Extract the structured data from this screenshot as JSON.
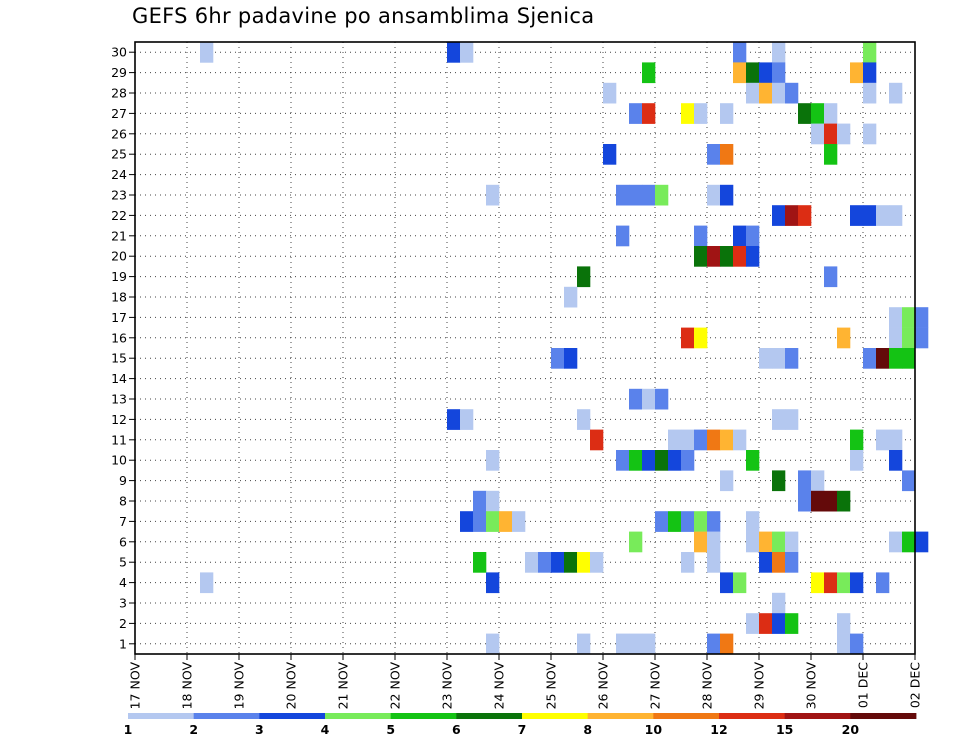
{
  "chart_data": {
    "type": "heatmap",
    "title": "GEFS 6hr padavine po ansamblima Sjenica",
    "xlabel": "",
    "ylabel": "",
    "x_tick_labels": [
      "17 NOV",
      "18 NOV",
      "19 NOV",
      "20 NOV",
      "21 NOV",
      "22 NOV",
      "23 NOV",
      "24 NOV",
      "25 NOV",
      "26 NOV",
      "27 NOV",
      "28 NOV",
      "29 NOV",
      "30 NOV",
      "01 DEC",
      "02 DEC"
    ],
    "y_tick_labels": [
      "1",
      "2",
      "3",
      "4",
      "5",
      "6",
      "7",
      "8",
      "9",
      "10",
      "11",
      "12",
      "13",
      "14",
      "15",
      "16",
      "17",
      "18",
      "19",
      "20",
      "21",
      "22",
      "23",
      "24",
      "25",
      "26",
      "27",
      "28",
      "29",
      "30"
    ],
    "time_steps_per_day": 4,
    "members": 30,
    "grid": true,
    "legend_position": "bottom",
    "colorbar": {
      "boundaries": [
        "1",
        "2",
        "3",
        "4",
        "5",
        "6",
        "7",
        "8",
        "10",
        "12",
        "15",
        "20"
      ],
      "colors": [
        "#b4c8f0",
        "#5a82eb",
        "#1446dc",
        "#78eb5a",
        "#14c314",
        "#0a730a",
        "#ffff00",
        "#ffb432",
        "#f07814",
        "#dc2d14",
        "#a01414",
        "#640a0a"
      ]
    },
    "cells": [
      [
        30,
        5,
        0
      ],
      [
        30,
        24,
        2
      ],
      [
        30,
        25,
        0
      ],
      [
        30,
        46,
        1
      ],
      [
        30,
        49,
        0
      ],
      [
        30,
        56,
        3
      ],
      [
        29,
        39,
        4
      ],
      [
        29,
        46,
        7
      ],
      [
        29,
        47,
        5
      ],
      [
        29,
        48,
        2
      ],
      [
        29,
        49,
        1
      ],
      [
        29,
        55,
        7
      ],
      [
        29,
        56,
        2
      ],
      [
        28,
        36,
        0
      ],
      [
        28,
        47,
        0
      ],
      [
        28,
        48,
        7
      ],
      [
        28,
        49,
        0
      ],
      [
        28,
        50,
        1
      ],
      [
        28,
        56,
        0
      ],
      [
        28,
        58,
        0
      ],
      [
        27,
        38,
        1
      ],
      [
        27,
        39,
        9
      ],
      [
        27,
        42,
        6
      ],
      [
        27,
        43,
        0
      ],
      [
        27,
        45,
        0
      ],
      [
        27,
        51,
        5
      ],
      [
        27,
        52,
        4
      ],
      [
        27,
        53,
        0
      ],
      [
        26,
        52,
        0
      ],
      [
        26,
        53,
        9
      ],
      [
        26,
        54,
        0
      ],
      [
        26,
        56,
        0
      ],
      [
        25,
        36,
        2
      ],
      [
        25,
        44,
        1
      ],
      [
        25,
        45,
        8
      ],
      [
        25,
        53,
        4
      ],
      [
        23,
        37,
        1
      ],
      [
        23,
        38,
        1
      ],
      [
        23,
        39,
        1
      ],
      [
        23,
        40,
        3
      ],
      [
        23,
        44,
        0
      ],
      [
        23,
        45,
        2
      ],
      [
        23,
        27,
        0
      ],
      [
        22,
        49,
        2
      ],
      [
        22,
        50,
        10
      ],
      [
        22,
        51,
        9
      ],
      [
        22,
        55,
        2
      ],
      [
        22,
        56,
        2
      ],
      [
        22,
        57,
        0
      ],
      [
        22,
        58,
        0
      ],
      [
        21,
        37,
        1
      ],
      [
        21,
        43,
        1
      ],
      [
        21,
        46,
        2
      ],
      [
        21,
        47,
        1
      ],
      [
        20,
        43,
        5
      ],
      [
        20,
        44,
        10
      ],
      [
        20,
        45,
        5
      ],
      [
        20,
        46,
        9
      ],
      [
        20,
        47,
        2
      ],
      [
        19,
        34,
        5
      ],
      [
        19,
        53,
        1
      ],
      [
        18,
        33,
        0
      ],
      [
        17,
        58,
        0
      ],
      [
        17,
        59,
        3
      ],
      [
        17,
        60,
        1
      ],
      [
        16,
        42,
        9
      ],
      [
        16,
        43,
        6
      ],
      [
        16,
        54,
        7
      ],
      [
        16,
        58,
        0
      ],
      [
        16,
        59,
        3
      ],
      [
        16,
        60,
        1
      ],
      [
        15,
        32,
        1
      ],
      [
        15,
        33,
        2
      ],
      [
        15,
        48,
        0
      ],
      [
        15,
        49,
        0
      ],
      [
        15,
        50,
        1
      ],
      [
        15,
        56,
        1
      ],
      [
        15,
        57,
        11
      ],
      [
        15,
        58,
        4
      ],
      [
        15,
        59,
        4
      ],
      [
        13,
        38,
        1
      ],
      [
        13,
        39,
        0
      ],
      [
        13,
        40,
        1
      ],
      [
        12,
        49,
        0
      ],
      [
        12,
        50,
        0
      ],
      [
        12,
        24,
        2
      ],
      [
        12,
        25,
        0
      ],
      [
        12,
        34,
        0
      ],
      [
        11,
        35,
        9
      ],
      [
        11,
        41,
        0
      ],
      [
        11,
        42,
        0
      ],
      [
        11,
        43,
        1
      ],
      [
        11,
        44,
        8
      ],
      [
        11,
        45,
        7
      ],
      [
        11,
        46,
        0
      ],
      [
        11,
        55,
        4
      ],
      [
        11,
        57,
        0
      ],
      [
        11,
        58,
        0
      ],
      [
        10,
        27,
        0
      ],
      [
        10,
        37,
        1
      ],
      [
        10,
        38,
        4
      ],
      [
        10,
        39,
        2
      ],
      [
        10,
        40,
        5
      ],
      [
        10,
        41,
        2
      ],
      [
        10,
        42,
        1
      ],
      [
        10,
        47,
        4
      ],
      [
        10,
        55,
        0
      ],
      [
        10,
        58,
        2
      ],
      [
        9,
        45,
        0
      ],
      [
        9,
        49,
        5
      ],
      [
        9,
        51,
        1
      ],
      [
        9,
        52,
        0
      ],
      [
        9,
        59,
        1
      ],
      [
        8,
        26,
        1
      ],
      [
        8,
        27,
        0
      ],
      [
        8,
        51,
        1
      ],
      [
        8,
        52,
        11
      ],
      [
        8,
        53,
        11
      ],
      [
        8,
        54,
        5
      ],
      [
        7,
        25,
        2
      ],
      [
        7,
        26,
        1
      ],
      [
        7,
        27,
        3
      ],
      [
        7,
        28,
        7
      ],
      [
        7,
        29,
        0
      ],
      [
        7,
        40,
        1
      ],
      [
        7,
        41,
        4
      ],
      [
        7,
        42,
        1
      ],
      [
        7,
        43,
        3
      ],
      [
        7,
        44,
        1
      ],
      [
        7,
        47,
        0
      ],
      [
        6,
        38,
        3
      ],
      [
        6,
        43,
        7
      ],
      [
        6,
        44,
        0
      ],
      [
        6,
        47,
        0
      ],
      [
        6,
        48,
        7
      ],
      [
        6,
        49,
        3
      ],
      [
        6,
        50,
        0
      ],
      [
        6,
        58,
        0
      ],
      [
        6,
        59,
        4
      ],
      [
        6,
        60,
        2
      ],
      [
        5,
        26,
        4
      ],
      [
        5,
        30,
        0
      ],
      [
        5,
        31,
        1
      ],
      [
        5,
        32,
        2
      ],
      [
        5,
        33,
        5
      ],
      [
        5,
        34,
        6
      ],
      [
        5,
        35,
        0
      ],
      [
        5,
        42,
        0
      ],
      [
        5,
        44,
        0
      ],
      [
        5,
        48,
        2
      ],
      [
        5,
        49,
        8
      ],
      [
        5,
        50,
        1
      ],
      [
        4,
        5,
        0
      ],
      [
        4,
        27,
        2
      ],
      [
        4,
        45,
        2
      ],
      [
        4,
        46,
        3
      ],
      [
        4,
        52,
        6
      ],
      [
        4,
        53,
        9
      ],
      [
        4,
        54,
        3
      ],
      [
        4,
        55,
        2
      ],
      [
        4,
        57,
        1
      ],
      [
        3,
        49,
        0
      ],
      [
        2,
        47,
        0
      ],
      [
        2,
        48,
        9
      ],
      [
        2,
        49,
        2
      ],
      [
        2,
        50,
        4
      ],
      [
        2,
        54,
        0
      ],
      [
        1,
        27,
        0
      ],
      [
        1,
        34,
        0
      ],
      [
        1,
        37,
        0
      ],
      [
        1,
        38,
        0
      ],
      [
        1,
        39,
        0
      ],
      [
        1,
        44,
        1
      ],
      [
        1,
        45,
        8
      ],
      [
        1,
        54,
        0
      ],
      [
        1,
        55,
        1
      ]
    ]
  }
}
